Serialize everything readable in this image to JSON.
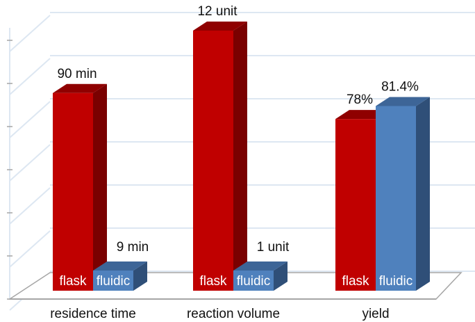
{
  "chart_data": {
    "type": "bar",
    "categories": [
      "residence time",
      "reaction volume",
      "yield"
    ],
    "series": [
      {
        "key": "flask",
        "values": [
          90,
          12,
          78
        ]
      },
      {
        "key": "fluidic",
        "values": [
          9,
          1,
          81.4
        ]
      }
    ],
    "bar_labels": [
      [
        "flask",
        "fluidic"
      ],
      [
        "flask",
        "fluidic"
      ],
      [
        "flask",
        "fluidic"
      ]
    ],
    "value_labels": [
      [
        "90 min",
        "9 min"
      ],
      [
        "12 unit",
        "1 unit"
      ],
      [
        "78%",
        "81.4%"
      ]
    ],
    "relative_heights": [
      [
        0.76,
        0.0
      ],
      [
        1.0,
        0.0
      ],
      [
        0.66,
        0.71
      ]
    ],
    "grid": true,
    "colors": {
      "flask_front": "#c00000",
      "flask_side": "#7a0000",
      "flask_top": "#8f0000",
      "fluidic_front": "#4f81bd",
      "fluidic_side": "#2f4f78",
      "fluidic_top": "#3d6597",
      "grid": "#dde7f2",
      "axis": "#a6a6a6"
    }
  }
}
